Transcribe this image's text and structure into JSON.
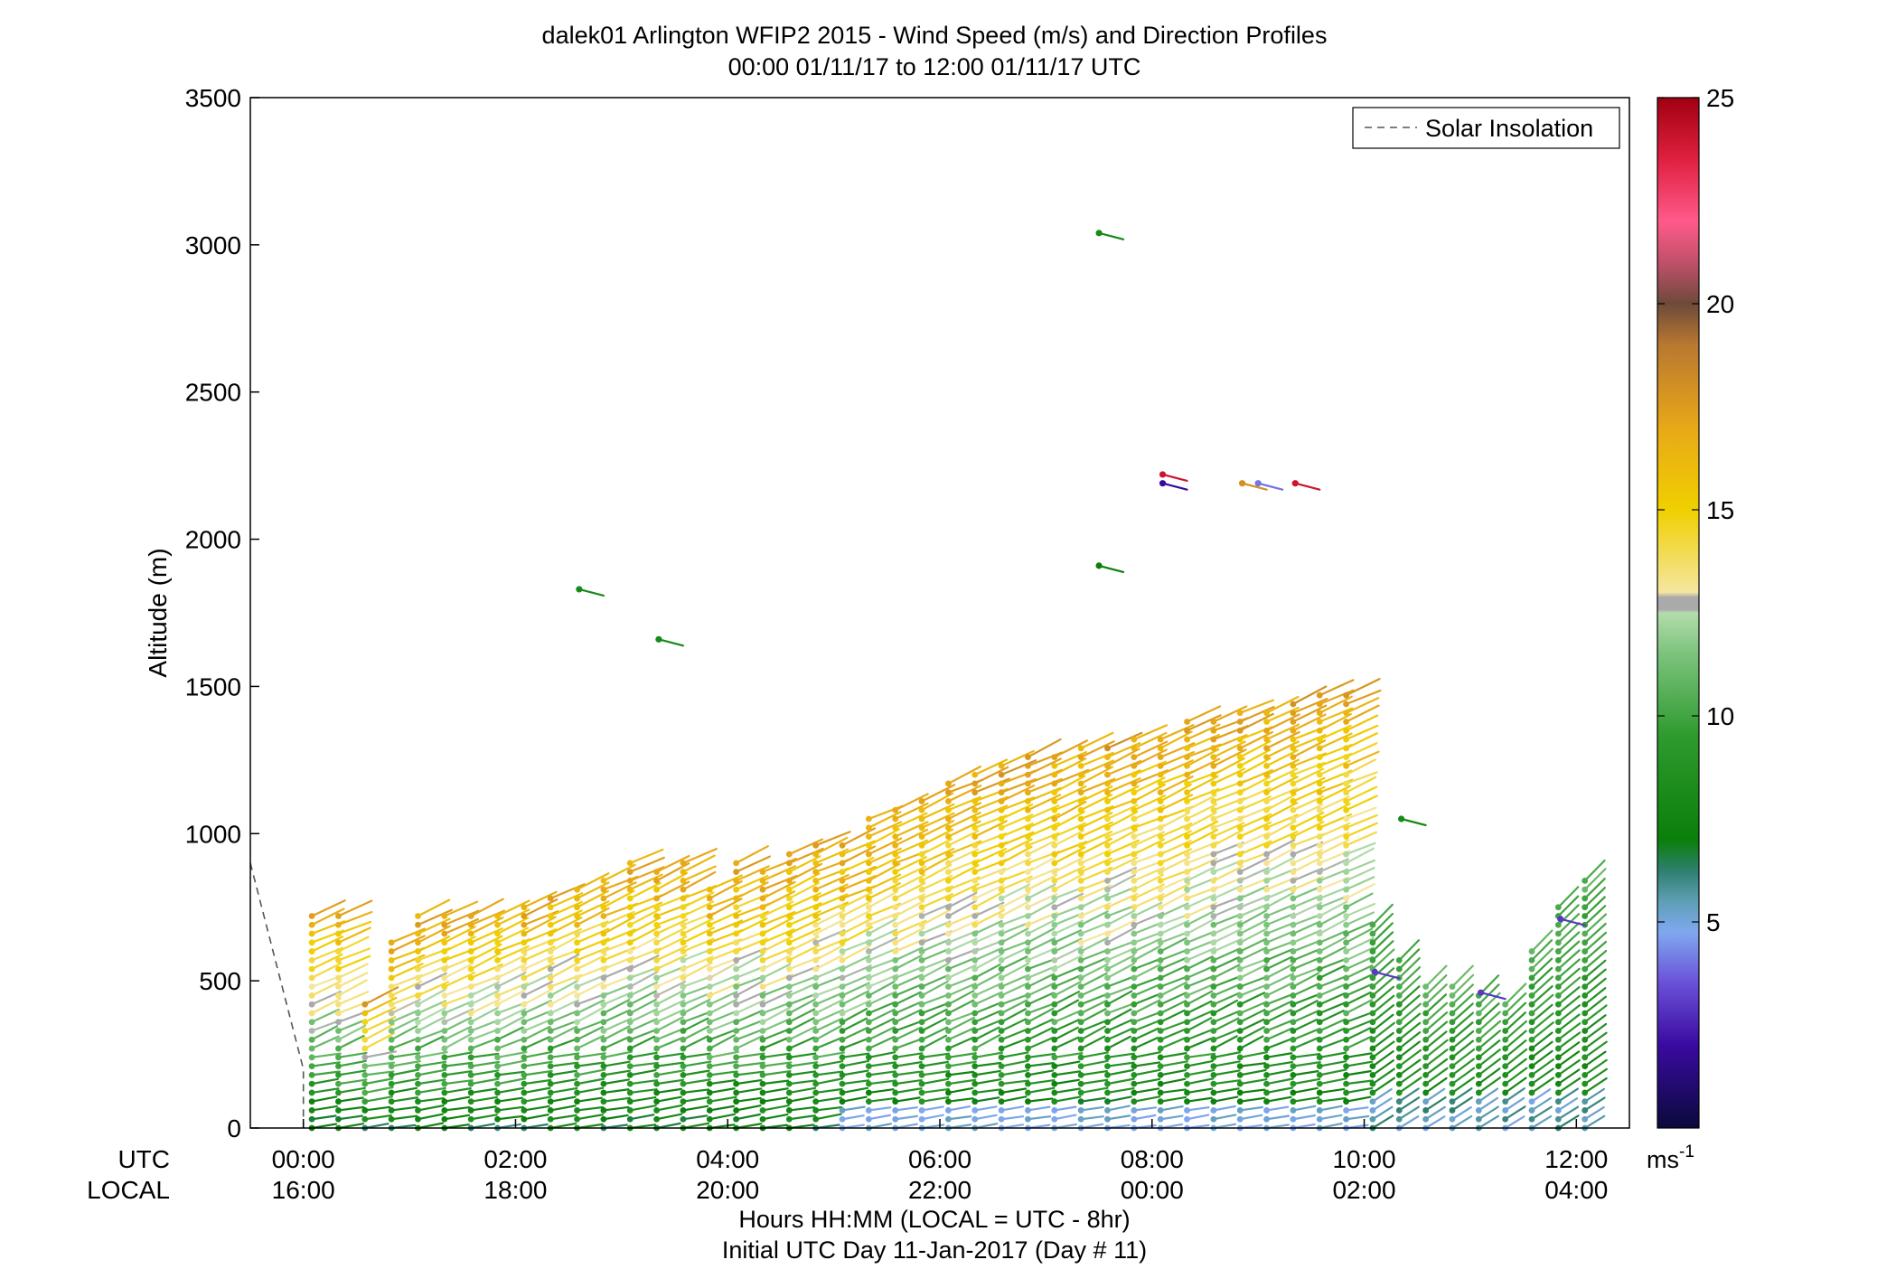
{
  "chart_data": {
    "type": "scatter",
    "title": "dalek01 Arlington WFIP2 2015 - Wind Speed (m/s) and Direction Profiles",
    "subtitle": "00:00 01/11/17 to 12:00 01/11/17  UTC",
    "xlabel": "Hours HH:MM  (LOCAL = UTC - 8hr)",
    "xlabel2": "Initial UTC Day 11-Jan-2017 (Day # 11)",
    "ylabel": "Altitude (m)",
    "row_label_utc": "UTC",
    "row_label_local": "LOCAL",
    "xlim_hours_utc": [
      -0.5,
      12.5
    ],
    "ylim": [
      0,
      3500
    ],
    "yticks": [
      0,
      500,
      1000,
      1500,
      2000,
      2500,
      3000,
      3500
    ],
    "xticks": [
      {
        "hour": 0,
        "utc": "00:00",
        "local": "16:00"
      },
      {
        "hour": 2,
        "utc": "02:00",
        "local": "18:00"
      },
      {
        "hour": 4,
        "utc": "04:00",
        "local": "20:00"
      },
      {
        "hour": 6,
        "utc": "06:00",
        "local": "22:00"
      },
      {
        "hour": 8,
        "utc": "08:00",
        "local": "00:00"
      },
      {
        "hour": 10,
        "utc": "10:00",
        "local": "02:00"
      },
      {
        "hour": 12,
        "utc": "12:00",
        "local": "04:00"
      }
    ],
    "legend": {
      "label": "Solar Insolation",
      "placement": "top-right"
    },
    "solar_insolation": [
      [
        -0.5,
        900
      ],
      [
        0.0,
        200
      ],
      [
        0.0,
        0
      ]
    ],
    "colorbar": {
      "min": 0,
      "max": 25,
      "ticks": [
        5,
        10,
        15,
        20,
        25
      ],
      "unit": "ms-1"
    },
    "profile_times_hours": [
      0.08,
      0.33,
      0.58,
      0.83,
      1.08,
      1.33,
      1.58,
      1.83,
      2.08,
      2.33,
      2.58,
      2.83,
      3.08,
      3.33,
      3.58,
      3.83,
      4.08,
      4.33,
      4.58,
      4.83,
      5.08,
      5.33,
      5.58,
      5.83,
      6.08,
      6.33,
      6.58,
      6.83,
      7.08,
      7.33,
      7.58,
      7.83,
      8.08,
      8.33,
      8.58,
      8.83,
      9.08,
      9.33,
      9.58,
      9.83,
      10.08,
      10.33,
      10.58,
      10.83,
      11.08,
      11.33,
      11.58,
      11.83,
      12.08
    ],
    "profile_top_altitude_m": [
      720,
      720,
      420,
      650,
      720,
      720,
      720,
      730,
      760,
      790,
      830,
      860,
      900,
      880,
      900,
      820,
      900,
      880,
      930,
      960,
      960,
      1050,
      1100,
      1130,
      1170,
      1200,
      1240,
      1260,
      1270,
      1300,
      1310,
      1330,
      1340,
      1380,
      1390,
      1410,
      1430,
      1450,
      1470,
      1490,
      700,
      580,
      500,
      500,
      460,
      440,
      600,
      760,
      850
    ],
    "notable_wind_barbs": [
      {
        "time_h": 7.5,
        "altitude_m": 3040,
        "speed_ms": 8
      },
      {
        "time_h": 7.5,
        "altitude_m": 1910,
        "speed_ms": 7
      },
      {
        "time_h": 8.1,
        "altitude_m": 2220,
        "speed_ms": 24
      },
      {
        "time_h": 8.1,
        "altitude_m": 2190,
        "speed_ms": 2
      },
      {
        "time_h": 9.0,
        "altitude_m": 2190,
        "speed_ms": 4
      },
      {
        "time_h": 9.35,
        "altitude_m": 2190,
        "speed_ms": 24
      },
      {
        "time_h": 8.85,
        "altitude_m": 2190,
        "speed_ms": 18
      },
      {
        "time_h": 3.35,
        "altitude_m": 1660,
        "speed_ms": 8
      },
      {
        "time_h": 2.6,
        "altitude_m": 1830,
        "speed_ms": 8
      },
      {
        "time_h": 10.35,
        "altitude_m": 1050,
        "speed_ms": 8
      },
      {
        "time_h": 11.1,
        "altitude_m": 460,
        "speed_ms": 3
      },
      {
        "time_h": 11.85,
        "altitude_m": 710,
        "speed_ms": 3
      },
      {
        "time_h": 10.1,
        "altitude_m": 530,
        "speed_ms": 3
      }
    ]
  }
}
